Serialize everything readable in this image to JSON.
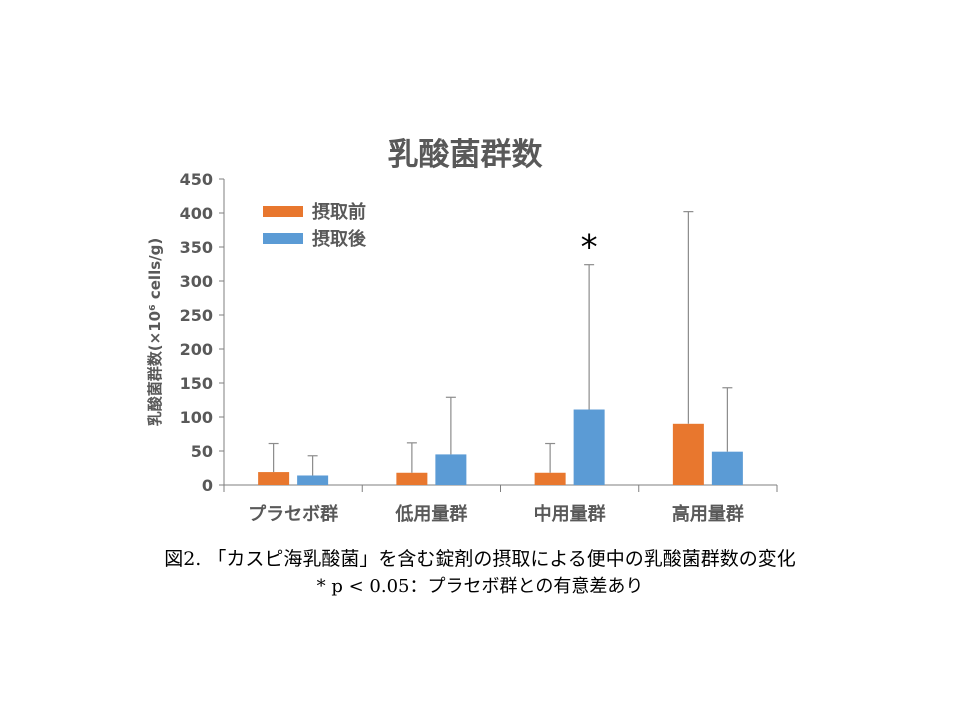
{
  "chart_data": {
    "type": "bar",
    "title": "乳酸菌群数",
    "ylabel": "乳酸菌群数(×10⁶ cells/g)",
    "xlabel": "",
    "ylim": [
      0,
      450
    ],
    "yticks": [
      0,
      50,
      100,
      150,
      200,
      250,
      300,
      350,
      400,
      450
    ],
    "categories": [
      "プラセボ群",
      "低用量群",
      "中用量群",
      "高用量群"
    ],
    "series": [
      {
        "name": "摂取前",
        "color": "#e8772e",
        "values": [
          19,
          18,
          18,
          90
        ],
        "error_upper": [
          61,
          62,
          61,
          402
        ]
      },
      {
        "name": "摂取後",
        "color": "#5b9bd5",
        "values": [
          14,
          45,
          111,
          49
        ],
        "error_upper": [
          43,
          129,
          324,
          143
        ]
      }
    ],
    "annotations": [
      {
        "category": "中用量群",
        "series": "摂取後",
        "text": "*"
      }
    ],
    "legend_position": "top-left",
    "grid": false,
    "error_color": "#8c8c8c"
  },
  "caption": {
    "line1": "図2. 「カスピ海乳酸菌」を含む錠剤の摂取による便中の乳酸菌群数の変化",
    "line2": "* p < 0.05：プラセボ群との有意差あり"
  }
}
